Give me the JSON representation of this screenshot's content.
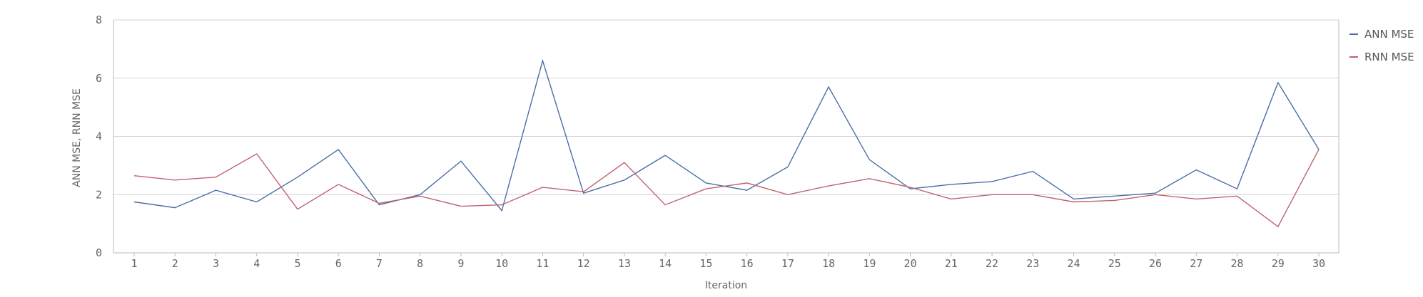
{
  "chart_data": {
    "type": "line",
    "title": "",
    "xlabel": "Iteration",
    "ylabel": "ANN MSE, RNN MSE",
    "x": [
      1,
      2,
      3,
      4,
      5,
      6,
      7,
      8,
      9,
      10,
      11,
      12,
      13,
      14,
      15,
      16,
      17,
      18,
      19,
      20,
      21,
      22,
      23,
      24,
      25,
      26,
      27,
      28,
      29,
      30
    ],
    "ylim": [
      0,
      8
    ],
    "yticks": [
      0,
      2,
      4,
      6,
      8
    ],
    "grid": true,
    "legend_position": "right",
    "series": [
      {
        "name": "ANN MSE",
        "color": "#4a6fa5",
        "values": [
          1.75,
          1.55,
          2.15,
          1.75,
          2.6,
          3.55,
          1.65,
          2.0,
          3.15,
          1.45,
          6.6,
          2.05,
          2.5,
          3.35,
          2.4,
          2.15,
          2.95,
          5.7,
          3.2,
          2.2,
          2.35,
          2.45,
          2.8,
          1.85,
          1.95,
          2.05,
          2.85,
          2.2,
          5.85,
          3.55
        ]
      },
      {
        "name": "RNN MSE",
        "color": "#c06075",
        "values": [
          2.65,
          2.5,
          2.6,
          3.4,
          1.5,
          2.35,
          1.7,
          1.95,
          1.6,
          1.65,
          2.25,
          2.1,
          3.1,
          1.65,
          2.2,
          2.4,
          2.0,
          2.3,
          2.55,
          2.25,
          1.85,
          2.0,
          2.0,
          1.75,
          1.8,
          2.0,
          1.85,
          1.95,
          0.9,
          3.55
        ]
      }
    ]
  }
}
